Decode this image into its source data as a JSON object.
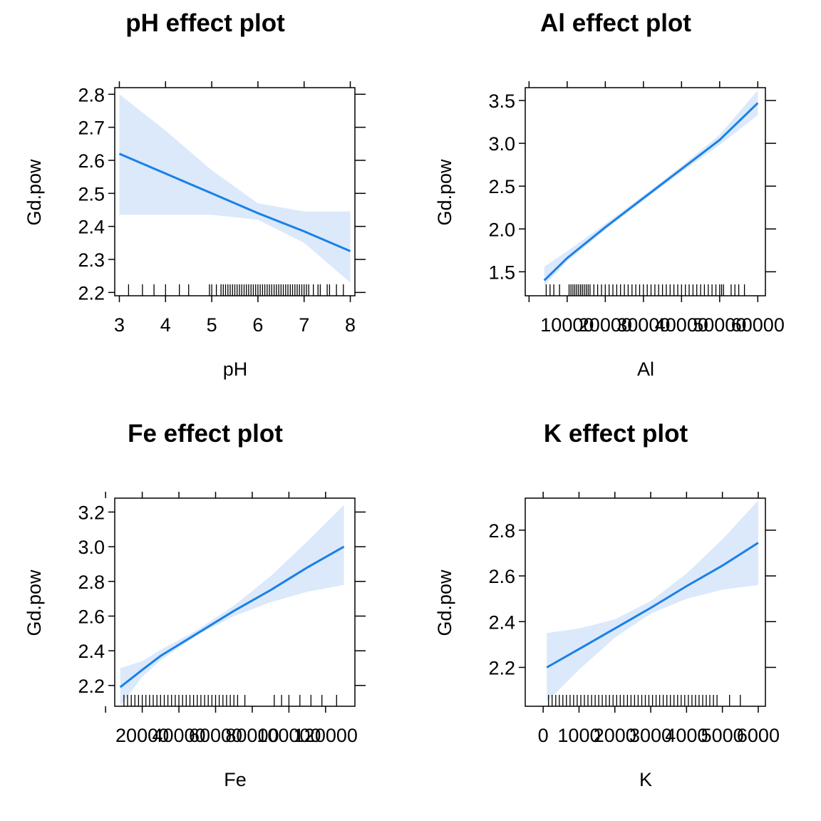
{
  "chart_data": [
    {
      "type": "line",
      "title": "pH effect plot",
      "xlabel": "pH",
      "ylabel": "Gd.pow",
      "xlim": [
        2.9,
        8.1
      ],
      "ylim": [
        2.19,
        2.82
      ],
      "xticks": [
        3,
        4,
        5,
        6,
        7,
        8
      ],
      "xtick_labels": [
        "3",
        "4",
        "5",
        "6",
        "7",
        "8"
      ],
      "yticks": [
        2.2,
        2.3,
        2.4,
        2.5,
        2.6,
        2.7,
        2.8
      ],
      "ytick_labels": [
        "2.2",
        "2.3",
        "2.4",
        "2.5",
        "2.6",
        "2.7",
        "2.8"
      ],
      "x": [
        3,
        4,
        5,
        6,
        7,
        8
      ],
      "fit": [
        2.62,
        2.56,
        2.5,
        2.44,
        2.385,
        2.325
      ],
      "lower": [
        2.435,
        2.435,
        2.435,
        2.42,
        2.35,
        2.23
      ],
      "upper": [
        2.8,
        2.69,
        2.57,
        2.47,
        2.445,
        2.445
      ],
      "rug": [
        3.2,
        3.5,
        3.75,
        4.0,
        4.3,
        4.5,
        4.95,
        5.0,
        5.1,
        5.2,
        5.25,
        5.3,
        5.35,
        5.4,
        5.45,
        5.5,
        5.55,
        5.6,
        5.65,
        5.7,
        5.75,
        5.8,
        5.85,
        5.9,
        5.95,
        6.0,
        6.05,
        6.1,
        6.15,
        6.2,
        6.25,
        6.3,
        6.35,
        6.4,
        6.45,
        6.5,
        6.55,
        6.6,
        6.65,
        6.7,
        6.75,
        6.8,
        6.85,
        6.9,
        6.95,
        7.0,
        7.05,
        7.1,
        7.2,
        7.3,
        7.35,
        7.5,
        7.55,
        7.7,
        7.85
      ],
      "grid": false
    },
    {
      "type": "line",
      "title": "Al effect plot",
      "xlabel": "Al",
      "ylabel": "Gd.pow",
      "xlim": [
        -1000,
        62000
      ],
      "ylim": [
        1.22,
        3.65
      ],
      "xticks": [
        0,
        10000,
        20000,
        30000,
        40000,
        50000,
        60000
      ],
      "xtick_labels": [
        "",
        "10000",
        "20000",
        "30000",
        "40000",
        "50000",
        "60000"
      ],
      "yticks": [
        1.5,
        2.0,
        2.5,
        3.0,
        3.5
      ],
      "ytick_labels": [
        "1.5",
        "2.0",
        "2.5",
        "3.0",
        "3.5"
      ],
      "x": [
        4000,
        10000,
        20000,
        30000,
        40000,
        50000,
        60000
      ],
      "fit": [
        1.4,
        1.66,
        2.02,
        2.36,
        2.7,
        3.04,
        3.47
      ],
      "lower": [
        1.34,
        1.62,
        1.99,
        2.335,
        2.665,
        2.98,
        3.33
      ],
      "upper": [
        1.56,
        1.74,
        2.06,
        2.39,
        2.735,
        3.1,
        3.62
      ],
      "rug": [
        4500,
        5500,
        6500,
        8000,
        10500,
        11000,
        11500,
        12000,
        12500,
        13000,
        13500,
        14000,
        14500,
        15000,
        15500,
        16000,
        17000,
        18000,
        19000,
        20000,
        21000,
        22000,
        23000,
        24000,
        25000,
        26000,
        27000,
        28000,
        29000,
        30000,
        31000,
        32000,
        33000,
        34000,
        35000,
        36000,
        37000,
        38000,
        39000,
        40000,
        41000,
        42000,
        43000,
        44000,
        45000,
        46000,
        47000,
        48000,
        49000,
        50000,
        50500,
        51000,
        53000,
        54000,
        55000,
        56500
      ],
      "grid": false
    },
    {
      "type": "line",
      "title": "Fe effect plot",
      "xlabel": "Fe",
      "ylabel": "Gd.pow",
      "xlim": [
        5000,
        136000
      ],
      "ylim": [
        2.08,
        3.28
      ],
      "xticks": [
        0,
        20000,
        40000,
        60000,
        80000,
        100000,
        120000
      ],
      "xtick_labels": [
        "",
        "20000",
        "40000",
        "60000",
        "80000",
        "100000",
        "120000"
      ],
      "yticks": [
        2.2,
        2.4,
        2.6,
        2.8,
        3.0,
        3.2
      ],
      "ytick_labels": [
        "2.2",
        "2.4",
        "2.6",
        "2.8",
        "3.0",
        "3.2"
      ],
      "x": [
        8000,
        20000,
        30000,
        50000,
        70000,
        90000,
        110000,
        130000
      ],
      "fit": [
        2.19,
        2.29,
        2.37,
        2.5,
        2.63,
        2.75,
        2.88,
        3.0
      ],
      "lower": [
        2.08,
        2.25,
        2.345,
        2.49,
        2.6,
        2.68,
        2.74,
        2.78
      ],
      "upper": [
        2.3,
        2.34,
        2.405,
        2.52,
        2.66,
        2.83,
        3.03,
        3.24
      ],
      "rug": [
        10000,
        12000,
        14000,
        16000,
        18000,
        20000,
        22000,
        24000,
        26000,
        28000,
        30000,
        32000,
        34000,
        36000,
        38000,
        40000,
        42000,
        44000,
        46000,
        48000,
        50000,
        52000,
        54000,
        56000,
        58000,
        60000,
        62000,
        64000,
        66000,
        68000,
        70000,
        72000,
        76000,
        92000,
        96000,
        100000,
        106000,
        112000,
        118000,
        126000
      ],
      "grid": false
    },
    {
      "type": "line",
      "title": "K effect plot",
      "xlabel": "K",
      "ylabel": "Gd.pow",
      "xlim": [
        -500,
        6200
      ],
      "ylim": [
        2.03,
        2.94
      ],
      "xticks": [
        0,
        1000,
        2000,
        3000,
        4000,
        5000,
        6000
      ],
      "xtick_labels": [
        "0",
        "1000",
        "2000",
        "3000",
        "4000",
        "5000",
        "6000"
      ],
      "yticks": [
        2.2,
        2.4,
        2.6,
        2.8
      ],
      "ytick_labels": [
        "2.2",
        "2.4",
        "2.6",
        "2.8"
      ],
      "x": [
        100,
        1000,
        2000,
        3000,
        4000,
        5000,
        6000
      ],
      "fit": [
        2.2,
        2.28,
        2.37,
        2.46,
        2.555,
        2.645,
        2.745
      ],
      "lower": [
        2.05,
        2.19,
        2.33,
        2.435,
        2.5,
        2.54,
        2.56
      ],
      "upper": [
        2.35,
        2.37,
        2.41,
        2.49,
        2.61,
        2.76,
        2.93
      ],
      "rug": [
        150,
        250,
        350,
        450,
        550,
        650,
        750,
        850,
        950,
        1050,
        1150,
        1250,
        1350,
        1450,
        1550,
        1650,
        1750,
        1850,
        1950,
        2050,
        2150,
        2250,
        2350,
        2450,
        2550,
        2650,
        2750,
        2850,
        2950,
        3050,
        3150,
        3250,
        3350,
        3450,
        3550,
        3650,
        3750,
        3850,
        3950,
        4050,
        4150,
        4250,
        4350,
        4450,
        4550,
        4650,
        4750,
        4850,
        5200,
        5500
      ],
      "grid": false
    }
  ],
  "colors": {
    "line": "#1a80e6",
    "band": "#dbe9fb",
    "axis": "#000000"
  }
}
